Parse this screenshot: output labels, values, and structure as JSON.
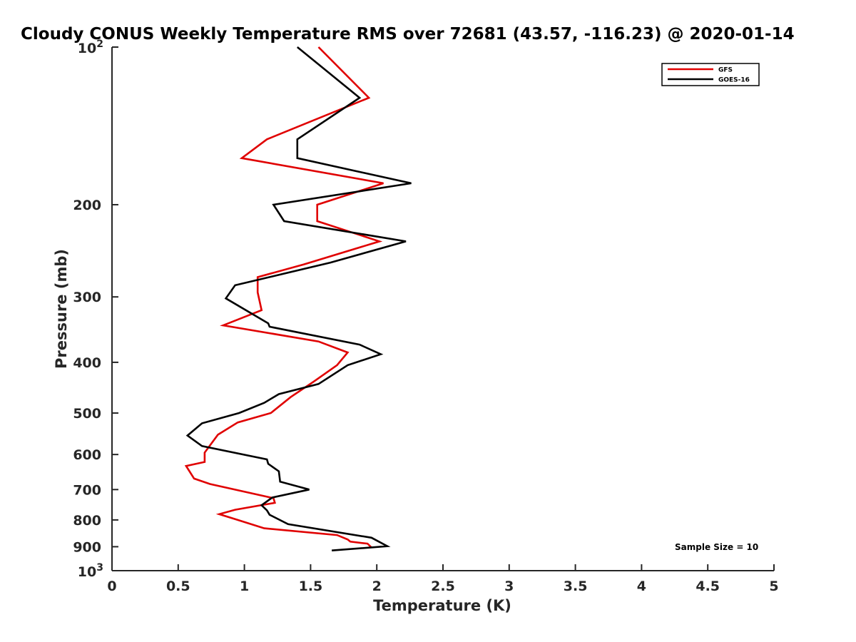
{
  "chart_data": {
    "type": "line",
    "title": "Cloudy CONUS Weekly Temperature RMS over 72681 (43.57, -116.23) @ 2020-01-14",
    "xlabel": "Temperature (K)",
    "ylabel": "Pressure (mb)",
    "xlim": [
      0,
      5
    ],
    "ylim": [
      100,
      1000
    ],
    "yscale": "log",
    "y_reversed": true,
    "grid": false,
    "x_ticks": [
      {
        "value": 0,
        "label": "0"
      },
      {
        "value": 0.5,
        "label": "0.5"
      },
      {
        "value": 1,
        "label": "1"
      },
      {
        "value": 1.5,
        "label": "1.5"
      },
      {
        "value": 2,
        "label": "2"
      },
      {
        "value": 2.5,
        "label": "2.5"
      },
      {
        "value": 3,
        "label": "3"
      },
      {
        "value": 3.5,
        "label": "3.5"
      },
      {
        "value": 4,
        "label": "4"
      },
      {
        "value": 4.5,
        "label": "4.5"
      },
      {
        "value": 5,
        "label": "5"
      }
    ],
    "y_ticks": [
      {
        "value": 100,
        "label": "10",
        "sup": "2"
      },
      {
        "value": 200,
        "label": "200",
        "sup": ""
      },
      {
        "value": 300,
        "label": "300",
        "sup": ""
      },
      {
        "value": 400,
        "label": "400",
        "sup": ""
      },
      {
        "value": 500,
        "label": "500",
        "sup": ""
      },
      {
        "value": 600,
        "label": "600",
        "sup": ""
      },
      {
        "value": 700,
        "label": "700",
        "sup": ""
      },
      {
        "value": 800,
        "label": "800",
        "sup": ""
      },
      {
        "value": 900,
        "label": "900",
        "sup": ""
      },
      {
        "value": 1000,
        "label": "10",
        "sup": "3"
      }
    ],
    "legend_position": "top-right",
    "annotation": "Sample Size = 10",
    "series": [
      {
        "name": "GFS",
        "color": "#e00000",
        "points": [
          [
            1.56,
            100
          ],
          [
            1.94,
            125
          ],
          [
            1.17,
            150
          ],
          [
            0.98,
            163
          ],
          [
            2.05,
            182
          ],
          [
            1.55,
            200
          ],
          [
            1.55,
            215
          ],
          [
            2.02,
            235
          ],
          [
            1.45,
            260
          ],
          [
            1.1,
            275
          ],
          [
            1.1,
            294
          ],
          [
            1.13,
            318
          ],
          [
            0.84,
            340
          ],
          [
            1.56,
            365
          ],
          [
            1.78,
            383
          ],
          [
            1.7,
            405
          ],
          [
            1.52,
            436
          ],
          [
            1.35,
            466
          ],
          [
            1.2,
            500
          ],
          [
            0.95,
            521
          ],
          [
            0.8,
            550
          ],
          [
            0.7,
            595
          ],
          [
            0.7,
            620
          ],
          [
            0.56,
            631
          ],
          [
            0.62,
            667
          ],
          [
            0.74,
            683
          ],
          [
            1.22,
            727
          ],
          [
            1.23,
            742
          ],
          [
            0.93,
            765
          ],
          [
            0.81,
            780
          ],
          [
            0.95,
            800
          ],
          [
            1.15,
            830
          ],
          [
            1.7,
            855
          ],
          [
            1.78,
            872
          ],
          [
            1.8,
            880
          ],
          [
            1.93,
            888
          ],
          [
            1.96,
            903
          ]
        ]
      },
      {
        "name": "GOES-16",
        "color": "#000000",
        "points": [
          [
            1.4,
            100
          ],
          [
            1.87,
            125
          ],
          [
            1.4,
            150
          ],
          [
            1.4,
            163
          ],
          [
            2.26,
            182
          ],
          [
            1.22,
            200
          ],
          [
            1.3,
            215
          ],
          [
            2.22,
            235
          ],
          [
            1.65,
            258
          ],
          [
            0.93,
            285
          ],
          [
            0.86,
            302
          ],
          [
            1.18,
            337
          ],
          [
            1.19,
            342
          ],
          [
            1.87,
            370
          ],
          [
            2.03,
            386
          ],
          [
            1.78,
            405
          ],
          [
            1.56,
            440
          ],
          [
            1.26,
            460
          ],
          [
            1.15,
            478
          ],
          [
            0.96,
            500
          ],
          [
            0.68,
            523
          ],
          [
            0.57,
            552
          ],
          [
            0.68,
            578
          ],
          [
            1.17,
            613
          ],
          [
            1.18,
            625
          ],
          [
            1.26,
            646
          ],
          [
            1.27,
            676
          ],
          [
            1.49,
            700
          ],
          [
            1.21,
            725
          ],
          [
            1.13,
            750
          ],
          [
            1.17,
            767
          ],
          [
            1.19,
            782
          ],
          [
            1.33,
            815
          ],
          [
            1.96,
            865
          ],
          [
            2.08,
            898
          ],
          [
            1.66,
            915
          ]
        ]
      }
    ]
  }
}
